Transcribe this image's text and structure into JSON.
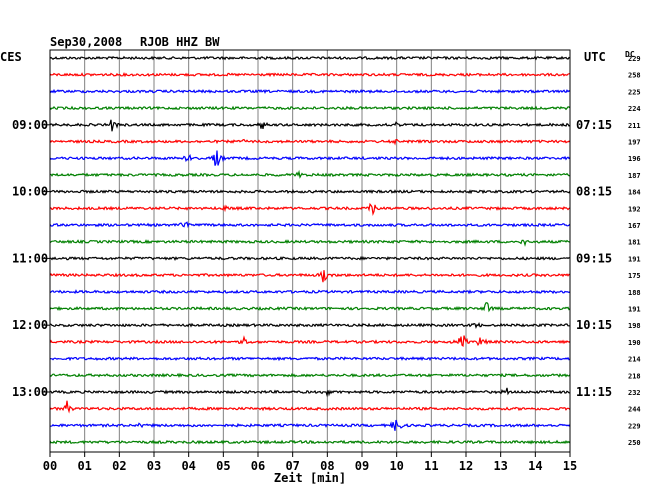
{
  "header": {
    "date": "Sep30,2008",
    "station": "RJOB HHZ BW",
    "left_tz": "CES",
    "right_tz": "UTC",
    "dc_label": "DC"
  },
  "colors": {
    "cycle": [
      "#000000",
      "#ff0000",
      "#0000ff",
      "#008000"
    ],
    "grid": "#808080",
    "frame": "#000000"
  },
  "chart_data": {
    "type": "line",
    "xlabel": "Zeit [min]",
    "xlim": [
      0,
      15
    ],
    "x_ticks": [
      "00",
      "01",
      "02",
      "03",
      "04",
      "05",
      "06",
      "07",
      "08",
      "09",
      "10",
      "11",
      "12",
      "13",
      "14",
      "15"
    ],
    "grid": true,
    "trace_count": 24,
    "left_hour_labels": [
      {
        "trace": 4,
        "label": "09:00"
      },
      {
        "trace": 8,
        "label": "10:00"
      },
      {
        "trace": 12,
        "label": "11:00"
      },
      {
        "trace": 16,
        "label": "12:00"
      },
      {
        "trace": 20,
        "label": "13:00"
      }
    ],
    "right_hour_labels": [
      {
        "trace": 4,
        "label": "07:15"
      },
      {
        "trace": 8,
        "label": "08:15"
      },
      {
        "trace": 12,
        "label": "09:15"
      },
      {
        "trace": 16,
        "label": "10:15"
      },
      {
        "trace": 20,
        "label": "11:15"
      }
    ],
    "dc_values": [
      "229",
      "258",
      "225",
      "224",
      "211",
      "197",
      "196",
      "187",
      "184",
      "192",
      "167",
      "181",
      "191",
      "175",
      "188",
      "191",
      "198",
      "190",
      "214",
      "218",
      "232",
      "244",
      "229",
      "250"
    ],
    "events": [
      {
        "trace": 4,
        "minute": 1.8,
        "amplitude": 7
      },
      {
        "trace": 4,
        "minute": 6.1,
        "amplitude": 6
      },
      {
        "trace": 4,
        "minute": 10.0,
        "amplitude": 4
      },
      {
        "trace": 5,
        "minute": 5.6,
        "amplitude": 3
      },
      {
        "trace": 5,
        "minute": 10.0,
        "amplitude": 3
      },
      {
        "trace": 6,
        "minute": 4.0,
        "amplitude": 4
      },
      {
        "trace": 6,
        "minute": 4.8,
        "amplitude": 12
      },
      {
        "trace": 7,
        "minute": 7.2,
        "amplitude": 3
      },
      {
        "trace": 9,
        "minute": 9.3,
        "amplitude": 9
      },
      {
        "trace": 9,
        "minute": 5.0,
        "amplitude": 4
      },
      {
        "trace": 10,
        "minute": 3.9,
        "amplitude": 6
      },
      {
        "trace": 11,
        "minute": 13.7,
        "amplitude": 4
      },
      {
        "trace": 13,
        "minute": 7.9,
        "amplitude": 12
      },
      {
        "trace": 15,
        "minute": 12.6,
        "amplitude": 8
      },
      {
        "trace": 16,
        "minute": 12.3,
        "amplitude": 3
      },
      {
        "trace": 17,
        "minute": 5.6,
        "amplitude": 4
      },
      {
        "trace": 17,
        "minute": 11.9,
        "amplitude": 12
      },
      {
        "trace": 17,
        "minute": 12.4,
        "amplitude": 7
      },
      {
        "trace": 20,
        "minute": 8.0,
        "amplitude": 5
      },
      {
        "trace": 20,
        "minute": 13.2,
        "amplitude": 4
      },
      {
        "trace": 21,
        "minute": 0.5,
        "amplitude": 8
      },
      {
        "trace": 22,
        "minute": 2.6,
        "amplitude": 4
      },
      {
        "trace": 22,
        "minute": 10.0,
        "amplitude": 10
      }
    ]
  }
}
